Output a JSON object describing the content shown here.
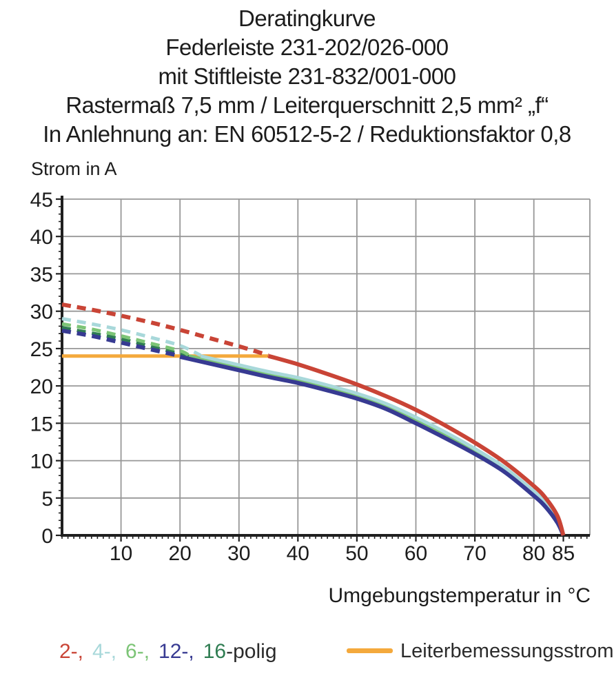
{
  "header": {
    "title_lines": [
      "Deratingkurve",
      "Federleiste 231-202/026-000",
      "mit Stiftleiste 231-832/001-000",
      "Rastermaß 7,5 mm / Leiterquerschnitt 2,5 mm² „f“",
      "In Anlehnung an: EN 60512-5-2 / Reduktionsfaktor 0,8"
    ]
  },
  "legend": {
    "tokens": [
      {
        "text": "2-,",
        "color": "#c94436"
      },
      {
        "text": "4-,",
        "color": "#a8d8da"
      },
      {
        "text": "6-,",
        "color": "#7cc476"
      },
      {
        "text": "12-,",
        "color": "#373a92"
      },
      {
        "text": "16",
        "color": "#2f7d52"
      },
      {
        "text": "-polig",
        "color": "#2b2b2b"
      }
    ],
    "rated": {
      "label": "Leiterbemessungsstrom",
      "color": "#f4a93c"
    }
  },
  "chart_data": {
    "type": "line",
    "title": "Deratingkurve",
    "xlabel": "Umgebungstemperatur in °C",
    "ylabel": "Strom in A",
    "xlim": [
      0,
      89.5
    ],
    "ylim": [
      0,
      45
    ],
    "grid": true,
    "grid_color": "#979797",
    "axis_color": "#1f1f1f",
    "text_color": "#1c1c1c",
    "x_major_ticks": [
      10,
      20,
      30,
      40,
      50,
      60,
      70,
      80,
      85
    ],
    "x_gridlines": [
      10,
      20,
      30,
      40,
      50,
      60,
      70,
      80,
      89.5
    ],
    "y_major_ticks": [
      0,
      5,
      10,
      15,
      20,
      25,
      30,
      35,
      40,
      45
    ],
    "y_gridlines": [
      5,
      10,
      15,
      20,
      25,
      30,
      35,
      40,
      45
    ],
    "x_minor_step": 1,
    "y_minor_step": 1,
    "series": [
      {
        "name": "2-polig",
        "color": "#c94436",
        "width": 6,
        "z": 6,
        "dashed": [
          [
            0,
            30.9
          ],
          [
            5,
            30.2
          ],
          [
            10,
            29.4
          ],
          [
            15,
            28.5
          ],
          [
            20,
            27.5
          ],
          [
            25,
            26.4
          ],
          [
            30,
            25.3
          ],
          [
            35,
            24.1
          ]
        ],
        "solid": [
          [
            35,
            24
          ],
          [
            40,
            22.9
          ],
          [
            45,
            21.6
          ],
          [
            50,
            20.2
          ],
          [
            55,
            18.6
          ],
          [
            60,
            16.8
          ],
          [
            65,
            14.7
          ],
          [
            70,
            12.4
          ],
          [
            75,
            9.8
          ],
          [
            80,
            6.6
          ],
          [
            82,
            5.0
          ],
          [
            84,
            2.6
          ],
          [
            85,
            0
          ]
        ]
      },
      {
        "name": "4-polig",
        "color": "#a8d8da",
        "width": 5,
        "z": 4,
        "dashed": [
          [
            0,
            29.0
          ],
          [
            5,
            28.3
          ],
          [
            10,
            27.5
          ],
          [
            15,
            26.5
          ],
          [
            20,
            25.4
          ],
          [
            23.5,
            24.1
          ]
        ],
        "solid": [
          [
            23.5,
            24
          ],
          [
            30,
            22.8
          ],
          [
            35,
            21.9
          ],
          [
            40,
            21.1
          ],
          [
            45,
            20.1
          ],
          [
            50,
            19.0
          ],
          [
            55,
            17.6
          ],
          [
            60,
            15.8
          ],
          [
            65,
            13.8
          ],
          [
            70,
            11.6
          ],
          [
            75,
            9.1
          ],
          [
            80,
            5.9
          ],
          [
            82,
            4.4
          ],
          [
            84,
            2.2
          ],
          [
            85,
            0
          ]
        ]
      },
      {
        "name": "6-polig",
        "color": "#7cc476",
        "width": 5,
        "z": 3,
        "dashed": [
          [
            0,
            28.3
          ],
          [
            5,
            27.6
          ],
          [
            10,
            26.7
          ],
          [
            15,
            25.7
          ],
          [
            20,
            24.7
          ],
          [
            21.5,
            24.1
          ]
        ],
        "solid": [
          [
            21.5,
            24
          ],
          [
            30,
            22.5
          ],
          [
            40,
            20.8
          ],
          [
            45,
            19.8
          ],
          [
            50,
            18.7
          ],
          [
            55,
            17.3
          ],
          [
            60,
            15.5
          ],
          [
            65,
            13.5
          ],
          [
            70,
            11.3
          ],
          [
            75,
            8.9
          ],
          [
            80,
            5.7
          ],
          [
            84,
            2.0
          ],
          [
            85,
            0
          ]
        ]
      },
      {
        "name": "12-polig",
        "color": "#373a92",
        "width": 6,
        "z": 5,
        "dashed": [
          [
            0,
            27.4
          ],
          [
            5,
            26.7
          ],
          [
            10,
            25.8
          ],
          [
            15,
            24.9
          ],
          [
            19.5,
            24.1
          ]
        ],
        "solid": [
          [
            20,
            23.9
          ],
          [
            25,
            23.0
          ],
          [
            30,
            22.1
          ],
          [
            35,
            21.2
          ],
          [
            40,
            20.4
          ],
          [
            45,
            19.4
          ],
          [
            50,
            18.3
          ],
          [
            55,
            16.9
          ],
          [
            60,
            15.0
          ],
          [
            65,
            13.0
          ],
          [
            70,
            10.9
          ],
          [
            75,
            8.5
          ],
          [
            80,
            5.3
          ],
          [
            82,
            3.8
          ],
          [
            84,
            1.7
          ],
          [
            85,
            0
          ]
        ]
      },
      {
        "name": "16-polig",
        "color": "#2f7d52",
        "width": 5,
        "z": 2,
        "dashed": [
          [
            0,
            27.8
          ],
          [
            10,
            26.3
          ],
          [
            15,
            25.3
          ],
          [
            20,
            24.3
          ],
          [
            21,
            24.05
          ]
        ],
        "solid": [
          [
            21,
            24
          ],
          [
            30,
            22.3
          ],
          [
            40,
            20.6
          ],
          [
            50,
            18.5
          ],
          [
            60,
            15.3
          ],
          [
            70,
            11.1
          ],
          [
            75,
            8.7
          ],
          [
            80,
            5.5
          ],
          [
            84,
            1.9
          ],
          [
            85,
            0
          ]
        ]
      },
      {
        "name": "Leiterbemessungsstrom",
        "color": "#f4a93c",
        "width": 5,
        "z": 1,
        "solid": [
          [
            0,
            24
          ],
          [
            35,
            24
          ]
        ]
      }
    ]
  }
}
